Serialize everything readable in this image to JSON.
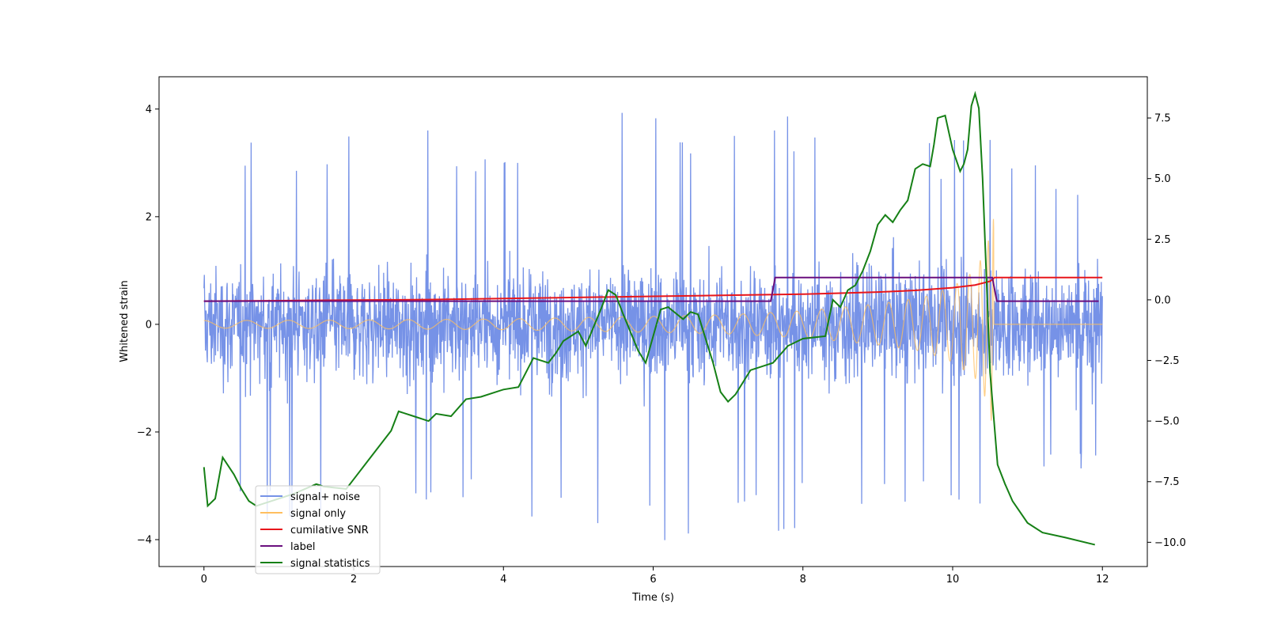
{
  "chart_data": {
    "type": "line",
    "title": "",
    "xlabel": "Time (s)",
    "ylabel": "Whitened strain",
    "y2label": "",
    "xlim": [
      -0.6,
      12.6
    ],
    "ylim": [
      -4.5,
      4.6
    ],
    "y2lim": [
      -11.0,
      9.2
    ],
    "xticks": [
      0,
      2,
      4,
      6,
      8,
      10,
      12
    ],
    "xtick_labels": [
      "0",
      "2",
      "4",
      "6",
      "8",
      "10",
      "12"
    ],
    "yticks": [
      -4,
      -2,
      0,
      2,
      4
    ],
    "ytick_labels": [
      "−4",
      "−2",
      "0",
      "2",
      "4"
    ],
    "y2ticks": [
      -10,
      -7.5,
      -5,
      -2.5,
      0,
      2.5,
      5,
      7.5
    ],
    "y2tick_labels": [
      "−10.0",
      "−7.5",
      "−5.0",
      "−2.5",
      "0.0",
      "2.5",
      "5.0",
      "7.5"
    ],
    "grid": false,
    "legend_position": "lower-left",
    "series": [
      {
        "name": "signal+ noise",
        "color": "#7692e7",
        "axis": "left",
        "kind": "noisy",
        "x_range": [
          0,
          12
        ],
        "envelope": [
          [
            0,
            2.9
          ],
          [
            1,
            3.8
          ],
          [
            2,
            3.6
          ],
          [
            3,
            3.9
          ],
          [
            4,
            3.6
          ],
          [
            5,
            3.9
          ],
          [
            6,
            4.2
          ],
          [
            7,
            4.2
          ],
          [
            8,
            3.9
          ],
          [
            9,
            3.6
          ],
          [
            10,
            3.6
          ],
          [
            10.4,
            3.5
          ],
          [
            11,
            3.4
          ],
          [
            12,
            2.7
          ]
        ],
        "y_min": -4.1
      },
      {
        "name": "signal only",
        "color": "#ffbf5f",
        "axis": "left",
        "kind": "chirp",
        "x_range": [
          0,
          12
        ],
        "peak_time": 10.55,
        "amplitude": [
          [
            0,
            0.07
          ],
          [
            2,
            0.08
          ],
          [
            4,
            0.1
          ],
          [
            6,
            0.15
          ],
          [
            7,
            0.18
          ],
          [
            8,
            0.25
          ],
          [
            9,
            0.38
          ],
          [
            9.6,
            0.5
          ],
          [
            10,
            0.7
          ],
          [
            10.3,
            1.0
          ],
          [
            10.45,
            1.4
          ],
          [
            10.55,
            2.0
          ]
        ]
      },
      {
        "name": "cumilative SNR",
        "color": "#e8161b",
        "axis": "left",
        "x": [
          0,
          1,
          2,
          3,
          4,
          5,
          6,
          7,
          8,
          8.5,
          9,
          9.5,
          10,
          10.3,
          10.5,
          10.56,
          12
        ],
        "y": [
          0.43,
          0.44,
          0.45,
          0.46,
          0.48,
          0.5,
          0.52,
          0.54,
          0.56,
          0.58,
          0.6,
          0.63,
          0.68,
          0.73,
          0.8,
          0.87,
          0.87
        ]
      },
      {
        "name": "label",
        "color": "#6a0f7e",
        "axis": "left",
        "x": [
          0,
          7.57,
          7.63,
          10.53,
          10.59,
          11.95
        ],
        "y": [
          0.43,
          0.43,
          0.87,
          0.87,
          0.43,
          0.43
        ]
      },
      {
        "name": "signal statistics",
        "color": "#168016",
        "axis": "right",
        "x": [
          0,
          0.05,
          0.15,
          0.25,
          0.4,
          0.5,
          0.6,
          0.7,
          0.8,
          1.0,
          1.2,
          1.5,
          1.6,
          1.9,
          2.0,
          2.2,
          2.3,
          2.4,
          2.5,
          2.6,
          2.8,
          3.0,
          3.1,
          3.3,
          3.5,
          3.7,
          4.0,
          4.2,
          4.4,
          4.5,
          4.6,
          4.7,
          4.8,
          5.0,
          5.1,
          5.3,
          5.4,
          5.5,
          5.6,
          5.8,
          5.9,
          6.0,
          6.1,
          6.2,
          6.4,
          6.5,
          6.6,
          6.8,
          6.9,
          7.0,
          7.1,
          7.3,
          7.5,
          7.6,
          7.8,
          8.0,
          8.3,
          8.4,
          8.5,
          8.6,
          8.7,
          8.8,
          8.9,
          9.0,
          9.1,
          9.2,
          9.3,
          9.4,
          9.5,
          9.6,
          9.7,
          9.75,
          9.8,
          9.9,
          10.0,
          10.1,
          10.15,
          10.2,
          10.25,
          10.3,
          10.35,
          10.4,
          10.5,
          10.6,
          10.7,
          10.8,
          11.0,
          11.2,
          11.5,
          11.9
        ],
        "y": [
          -6.9,
          -8.5,
          -8.2,
          -6.5,
          -7.2,
          -7.8,
          -8.3,
          -8.5,
          -8.4,
          -8.2,
          -8.0,
          -7.6,
          -7.7,
          -7.8,
          -7.4,
          -6.6,
          -6.2,
          -5.8,
          -5.4,
          -4.6,
          -4.8,
          -5.0,
          -4.7,
          -4.8,
          -4.1,
          -4.0,
          -3.7,
          -3.6,
          -2.4,
          -2.5,
          -2.6,
          -2.2,
          -1.7,
          -1.3,
          -1.9,
          -0.4,
          0.4,
          0.2,
          -0.6,
          -2.1,
          -2.6,
          -1.5,
          -0.4,
          -0.3,
          -0.8,
          -0.5,
          -0.6,
          -2.6,
          -3.8,
          -4.2,
          -3.9,
          -2.9,
          -2.7,
          -2.6,
          -1.9,
          -1.6,
          -1.5,
          0.0,
          -0.3,
          0.4,
          0.6,
          1.2,
          2.0,
          3.1,
          3.5,
          3.2,
          3.7,
          4.1,
          5.4,
          5.6,
          5.5,
          6.4,
          7.5,
          7.6,
          6.2,
          5.3,
          5.6,
          6.2,
          8.0,
          8.5,
          7.9,
          5.0,
          -3.0,
          -6.8,
          -7.6,
          -8.3,
          -9.2,
          -9.6,
          -9.8,
          -10.1
        ]
      }
    ]
  }
}
